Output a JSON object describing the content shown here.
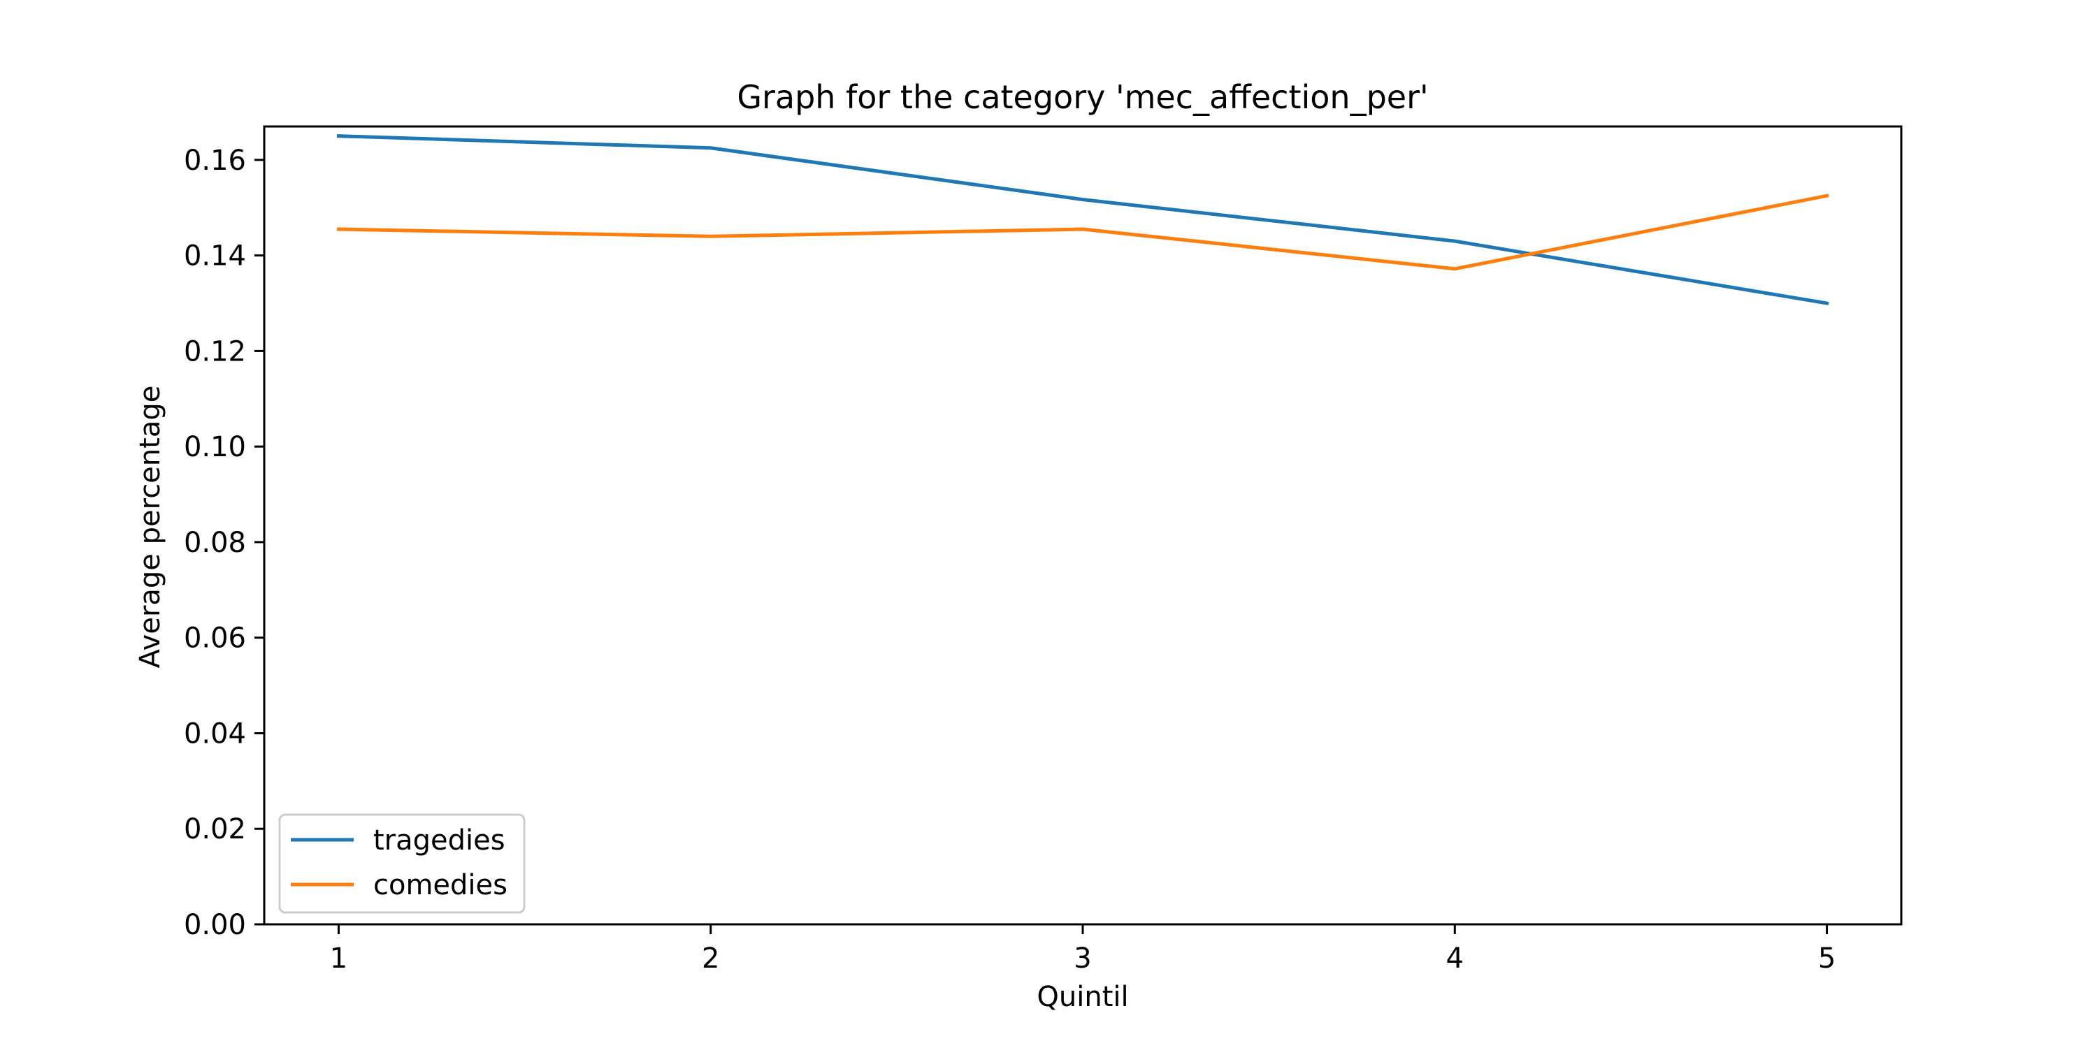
{
  "chart_data": {
    "type": "line",
    "title": "Graph for the category  'mec_affection_per'",
    "xlabel": "Quintil",
    "ylabel": "Average percentage",
    "x": [
      1,
      2,
      3,
      4,
      5
    ],
    "x_tick_labels": [
      "1",
      "2",
      "3",
      "4",
      "5"
    ],
    "xlim": [
      0.8,
      5.2
    ],
    "ylim": [
      0.0,
      0.167
    ],
    "y_ticks": [
      0.0,
      0.02,
      0.04,
      0.06,
      0.08,
      0.1,
      0.12,
      0.14,
      0.16
    ],
    "y_tick_labels": [
      "0.00",
      "0.02",
      "0.04",
      "0.06",
      "0.08",
      "0.10",
      "0.12",
      "0.14",
      "0.16"
    ],
    "grid": false,
    "legend_position": "lower-left",
    "series": [
      {
        "name": "tragedies",
        "color": "#1f77b4",
        "values": [
          0.165,
          0.1625,
          0.1517,
          0.143,
          0.13
        ]
      },
      {
        "name": "comedies",
        "color": "#ff7f0e",
        "values": [
          0.1455,
          0.144,
          0.1455,
          0.1372,
          0.1525
        ]
      }
    ]
  }
}
